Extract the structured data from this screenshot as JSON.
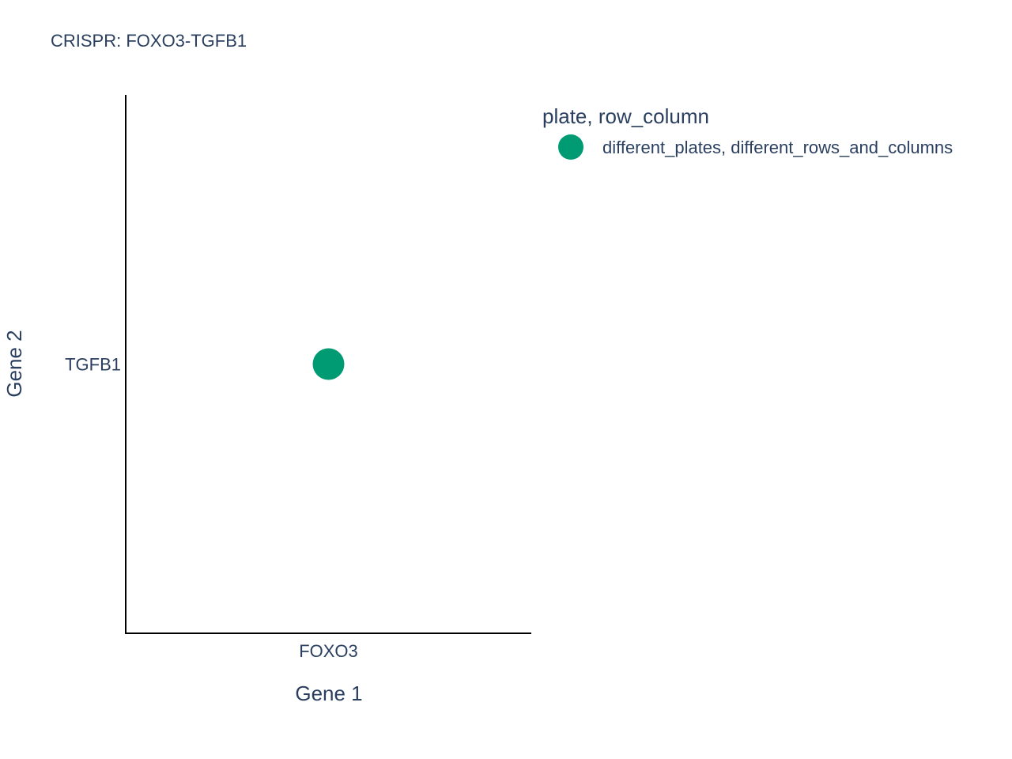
{
  "chart_data": {
    "type": "scatter",
    "title": "CRISPR: FOXO3-TGFB1",
    "xlabel": "Gene 1",
    "ylabel": "Gene 2",
    "x_categories": [
      "FOXO3"
    ],
    "y_categories": [
      "TGFB1"
    ],
    "legend": {
      "title": "plate, row_column",
      "placement": "right"
    },
    "series": [
      {
        "name": "different_plates, different_rows_and_columns",
        "color": "#009b72",
        "points": [
          {
            "x": "FOXO3",
            "y": "TGFB1"
          }
        ]
      }
    ]
  }
}
